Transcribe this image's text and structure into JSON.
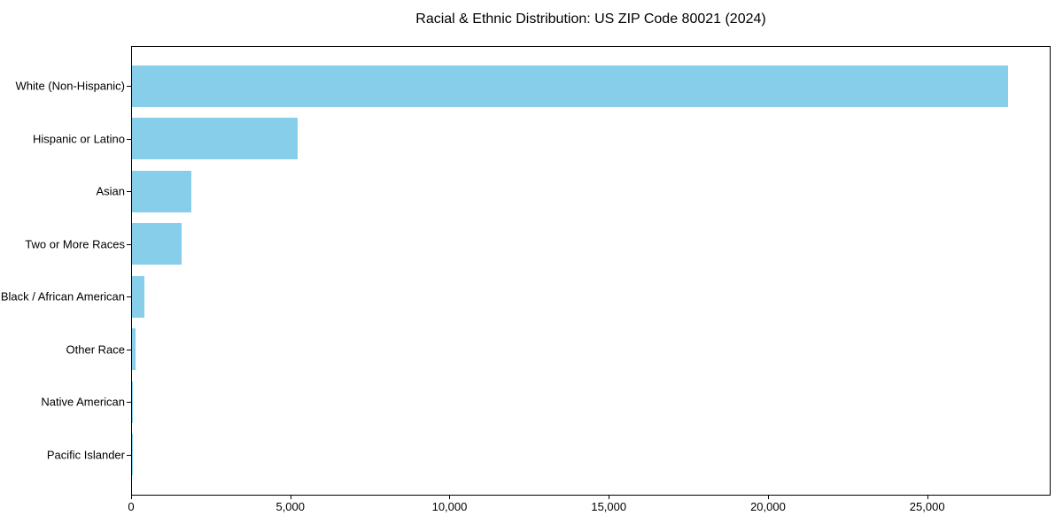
{
  "chart_data": {
    "type": "bar",
    "orientation": "horizontal",
    "title": "Racial & Ethnic Distribution: US ZIP Code 80021 (2024)",
    "categories": [
      "White (Non-Hispanic)",
      "Hispanic or Latino",
      "Asian",
      "Two or More Races",
      "Black / African American",
      "Other Race",
      "Native American",
      "Pacific Islander"
    ],
    "values": [
      27500,
      5200,
      1850,
      1570,
      390,
      125,
      40,
      10
    ],
    "bar_color": "#87CEEB",
    "xlabel": "",
    "ylabel": "",
    "xlim": [
      0,
      28875
    ],
    "xticks": [
      {
        "value": 0,
        "label": "0"
      },
      {
        "value": 5000,
        "label": "5,000"
      },
      {
        "value": 10000,
        "label": "10,000"
      },
      {
        "value": 15000,
        "label": "15,000"
      },
      {
        "value": 20000,
        "label": "20,000"
      },
      {
        "value": 25000,
        "label": "25,000"
      }
    ],
    "grid": false,
    "legend": null,
    "frame_color": "#000000",
    "text_color": "#000000",
    "background_color": "#ffffff"
  }
}
